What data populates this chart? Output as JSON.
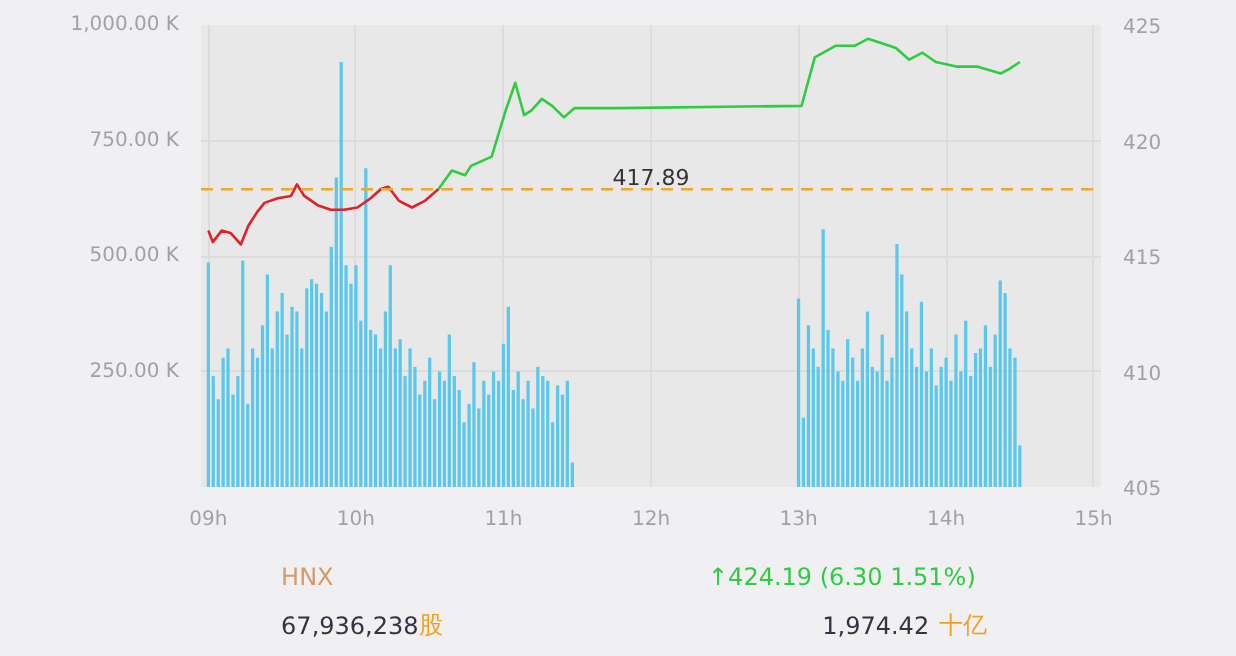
{
  "chart_data": {
    "type": "bar",
    "xlim": [
      8.95,
      15.05
    ],
    "xticks": [
      {
        "value": 9,
        "label": "09h"
      },
      {
        "value": 10,
        "label": "10h"
      },
      {
        "value": 11,
        "label": "11h"
      },
      {
        "value": 12,
        "label": "12h"
      },
      {
        "value": 13,
        "label": "13h"
      },
      {
        "value": 14,
        "label": "14h"
      },
      {
        "value": 15,
        "label": "15h"
      }
    ],
    "ylim": [
      0,
      1000
    ],
    "yticks": [
      {
        "value": 250,
        "label": "250.00 K"
      },
      {
        "value": 500,
        "label": "500.00 K"
      },
      {
        "value": 750,
        "label": "750.00 K"
      },
      {
        "value": 1000,
        "label": "1,000.00 K"
      }
    ],
    "y2lim": [
      405,
      425
    ],
    "y2ticks": [
      405,
      410,
      415,
      420,
      425
    ],
    "grid": true,
    "series": [
      {
        "color": "#5bc8ea",
        "x": [
          9.0,
          9.033,
          9.067,
          9.1,
          9.133,
          9.167,
          9.2,
          9.233,
          9.267,
          9.3,
          9.333,
          9.367,
          9.4,
          9.433,
          9.467,
          9.5,
          9.533,
          9.567,
          9.6,
          9.633,
          9.667,
          9.7,
          9.733,
          9.767,
          9.8,
          9.833,
          9.867,
          9.9,
          9.933,
          9.967,
          10.0,
          10.033,
          10.067,
          10.1,
          10.133,
          10.167,
          10.2,
          10.233,
          10.267,
          10.3,
          10.333,
          10.367,
          10.4,
          10.433,
          10.467,
          10.5,
          10.533,
          10.567,
          10.6,
          10.633,
          10.667,
          10.7,
          10.733,
          10.767,
          10.8,
          10.833,
          10.867,
          10.9,
          10.933,
          10.967,
          11.0,
          11.033,
          11.067,
          11.1,
          11.133,
          11.167,
          11.2,
          11.233,
          11.267,
          11.3,
          11.333,
          11.367,
          11.4,
          11.433,
          11.467,
          13.0,
          13.033,
          13.067,
          13.1,
          13.133,
          13.167,
          13.2,
          13.233,
          13.267,
          13.3,
          13.333,
          13.367,
          13.4,
          13.433,
          13.467,
          13.5,
          13.533,
          13.567,
          13.6,
          13.633,
          13.667,
          13.7,
          13.733,
          13.767,
          13.8,
          13.833,
          13.867,
          13.9,
          13.933,
          13.967,
          14.0,
          14.033,
          14.067,
          14.1,
          14.133,
          14.167,
          14.2,
          14.233,
          14.267,
          14.3,
          14.333,
          14.367,
          14.4,
          14.433,
          14.467,
          14.5
        ],
        "values": [
          486,
          240,
          190,
          280,
          300,
          200,
          240,
          490,
          180,
          300,
          280,
          350,
          460,
          300,
          380,
          420,
          330,
          390,
          380,
          300,
          430,
          450,
          440,
          420,
          380,
          520,
          670,
          920,
          480,
          440,
          480,
          360,
          690,
          340,
          330,
          300,
          380,
          480,
          300,
          320,
          240,
          300,
          260,
          200,
          230,
          280,
          190,
          250,
          230,
          330,
          240,
          210,
          140,
          180,
          270,
          170,
          230,
          200,
          250,
          230,
          310,
          390,
          210,
          250,
          190,
          230,
          170,
          260,
          240,
          230,
          140,
          220,
          200,
          230,
          53,
          408,
          150,
          350,
          300,
          260,
          558,
          340,
          300,
          250,
          230,
          320,
          280,
          230,
          300,
          380,
          260,
          250,
          330,
          230,
          280,
          526,
          460,
          380,
          300,
          260,
          401,
          250,
          300,
          220,
          260,
          280,
          230,
          330,
          250,
          360,
          240,
          290,
          300,
          350,
          260,
          330,
          447,
          420,
          300,
          280,
          90
        ]
      },
      {
        "type": "line",
        "axis": "y2",
        "color": "#e0202a",
        "x": [
          9.0,
          9.03,
          9.09,
          9.15,
          9.22,
          9.27,
          9.33,
          9.38,
          9.47,
          9.56,
          9.6,
          9.65,
          9.74,
          9.83,
          9.92,
          10.01,
          10.1,
          10.17,
          10.22,
          10.29,
          10.38,
          10.47,
          10.56
        ],
        "values": [
          416.1,
          415.6,
          416.1,
          416.0,
          415.5,
          416.3,
          416.9,
          417.3,
          417.5,
          417.6,
          418.1,
          417.6,
          417.2,
          417.0,
          417.0,
          417.1,
          417.5,
          417.9,
          418.0,
          417.4,
          417.1,
          417.4,
          417.9
        ]
      },
      {
        "type": "line",
        "axis": "y2",
        "color": "#2ecc40",
        "x": [
          10.56,
          10.65,
          10.74,
          10.78,
          10.92,
          11.01,
          11.08,
          11.14,
          11.19,
          11.26,
          11.33,
          11.41,
          11.48,
          11.78,
          13.02,
          13.11,
          13.25,
          13.38,
          13.47,
          13.57,
          13.66,
          13.75,
          13.84,
          13.93,
          14.07,
          14.21,
          14.37,
          14.43,
          14.5
        ],
        "values": [
          417.9,
          418.7,
          418.5,
          418.9,
          419.3,
          421.2,
          422.5,
          421.1,
          421.3,
          421.8,
          421.5,
          421.0,
          421.4,
          421.4,
          421.5,
          423.6,
          424.1,
          424.1,
          424.4,
          424.2,
          424.0,
          423.5,
          423.8,
          423.4,
          423.2,
          423.2,
          422.9,
          423.1,
          423.4
        ]
      }
    ],
    "ref_lines": [
      {
        "axis": "y2",
        "value": 417.89,
        "label": "417.89",
        "color": "#f5a623",
        "line_style": "dashed"
      }
    ],
    "annotations": [
      "HNX",
      "↑424.19 (6.30 1.51%)",
      "67,936,238",
      "股",
      "1,974.42",
      "十亿"
    ]
  }
}
